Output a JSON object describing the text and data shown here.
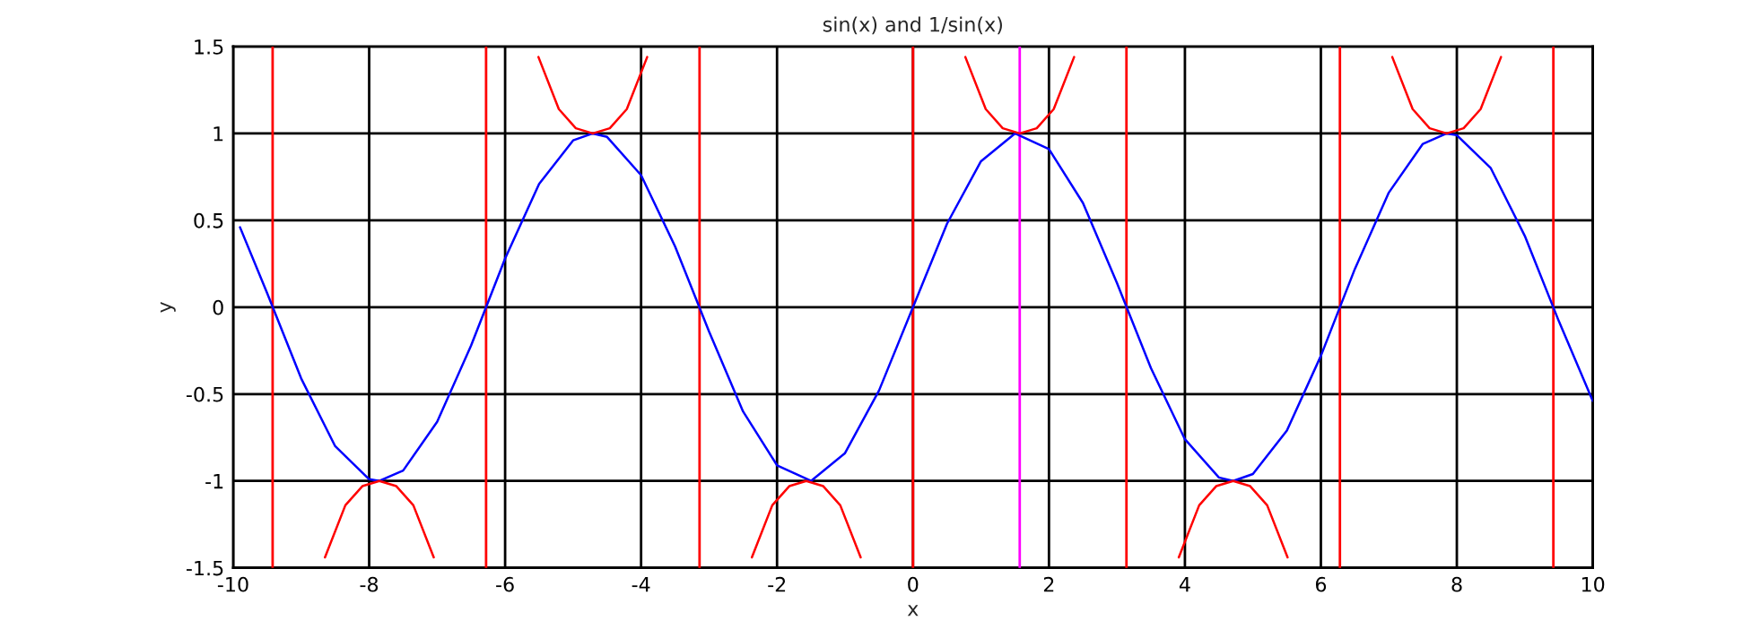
{
  "chart_data": {
    "type": "line",
    "title": "sin(x) and 1/sin(x)",
    "xlabel": "x",
    "ylabel": "y",
    "xlim": [
      -10,
      10
    ],
    "xticks": [
      -10,
      -8,
      -6,
      -4,
      -2,
      0,
      2,
      4,
      6,
      8,
      10
    ],
    "ylim": [
      -1.5,
      1.5
    ],
    "yticks": [
      -1.5,
      -1,
      -0.5,
      0,
      0.5,
      1,
      1.5
    ],
    "grid": true,
    "marker": "none",
    "line_style": "solid",
    "series": [
      {
        "color": "#0000ff",
        "x": [
          -9.9,
          -9.5,
          -9,
          -8.5,
          -8,
          -7.85,
          -7.5,
          -7,
          -6.5,
          -6,
          -5.5,
          -5,
          -4.71,
          -4.5,
          -4,
          -3.5,
          -3,
          -2.5,
          -2,
          -1.5,
          -1,
          -0.5,
          0,
          0.5,
          1,
          1.5,
          2,
          2.5,
          3,
          3.5,
          4,
          4.5,
          4.71,
          5,
          5.5,
          6,
          6.5,
          7,
          7.5,
          7.85,
          8,
          8.5,
          9,
          9.5,
          10
        ],
        "values": [
          0.46,
          0.08,
          -0.41,
          -0.8,
          -0.99,
          -1,
          -0.94,
          -0.66,
          -0.22,
          0.28,
          0.71,
          0.96,
          1,
          0.98,
          0.76,
          0.35,
          -0.14,
          -0.6,
          -0.91,
          -1,
          -0.84,
          -0.48,
          0,
          0.48,
          0.84,
          1,
          0.91,
          0.6,
          0.14,
          -0.35,
          -0.76,
          -0.98,
          -1,
          -0.96,
          -0.71,
          -0.28,
          0.22,
          0.66,
          0.94,
          1,
          0.99,
          0.8,
          0.41,
          -0.08,
          -0.54
        ]
      },
      {
        "color": "#ff0000",
        "x": [
          -8.65,
          -8.35,
          -8.1,
          -7.85,
          -7.6,
          -7.35,
          -7.05,
          -6.28,
          -5.51,
          -5.21,
          -4.96,
          -4.71,
          -4.46,
          -4.21,
          -3.91,
          -3.14,
          -2.37,
          -2.07,
          -1.82,
          -1.57,
          -1.32,
          -1.07,
          -0.77,
          0,
          0.77,
          1.07,
          1.32,
          1.57,
          1.82,
          2.07,
          2.37,
          3.14,
          3.91,
          4.21,
          4.46,
          4.71,
          4.96,
          5.21,
          5.51,
          6.28,
          7.05,
          7.35,
          7.6,
          7.85,
          8.1,
          8.35,
          8.65
        ],
        "values": [
          -1.44,
          -1.14,
          -1.03,
          -1,
          -1.03,
          -1.14,
          -1.44,
          null,
          1.44,
          1.14,
          1.03,
          1,
          1.03,
          1.14,
          1.44,
          null,
          -1.44,
          -1.14,
          -1.03,
          -1,
          -1.03,
          -1.14,
          -1.44,
          null,
          1.44,
          1.14,
          1.03,
          1,
          1.03,
          1.14,
          1.44,
          null,
          -1.44,
          -1.14,
          -1.03,
          -1,
          -1.03,
          -1.14,
          -1.44,
          null,
          1.44,
          1.14,
          1.03,
          1,
          1.03,
          1.14,
          1.44
        ]
      }
    ],
    "ref_lines": [
      {
        "axis": "x",
        "value": -9.42,
        "color": "#ff0000"
      },
      {
        "axis": "x",
        "value": -6.28,
        "color": "#ff0000"
      },
      {
        "axis": "x",
        "value": -3.14,
        "color": "#ff0000"
      },
      {
        "axis": "x",
        "value": 0,
        "color": "#ff0000"
      },
      {
        "axis": "x",
        "value": 1.57,
        "color": "#ff00ff"
      },
      {
        "axis": "x",
        "value": 3.14,
        "color": "#ff0000"
      },
      {
        "axis": "x",
        "value": 6.28,
        "color": "#ff0000"
      },
      {
        "axis": "x",
        "value": 9.42,
        "color": "#ff0000"
      }
    ]
  }
}
